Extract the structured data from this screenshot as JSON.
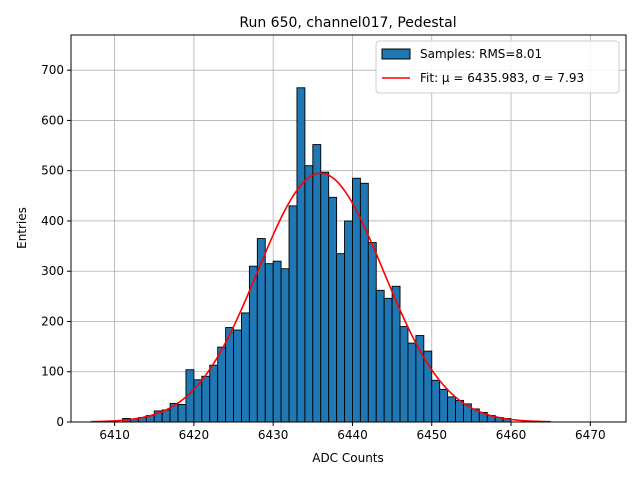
{
  "chart_data": {
    "type": "bar",
    "title": "Run 650, channel017, Pedestal",
    "xlabel": "ADC Counts",
    "ylabel": "Entries",
    "xlim": [
      6404.5,
      6474.5
    ],
    "ylim": [
      0,
      770
    ],
    "xticks": [
      6410,
      6420,
      6430,
      6440,
      6450,
      6460,
      6470
    ],
    "yticks": [
      0,
      100,
      200,
      300,
      400,
      500,
      600,
      700
    ],
    "grid": true,
    "legend_position": "top-right",
    "histogram": {
      "name": "Samples: RMS=8.01",
      "color": "#1f77b4",
      "bin_width": 1,
      "bin_starts": [
        6411,
        6412,
        6413,
        6414,
        6415,
        6416,
        6417,
        6418,
        6419,
        6420,
        6421,
        6422,
        6423,
        6424,
        6425,
        6426,
        6427,
        6428,
        6429,
        6430,
        6431,
        6432,
        6433,
        6434,
        6435,
        6436,
        6437,
        6438,
        6439,
        6440,
        6441,
        6442,
        6443,
        6444,
        6445,
        6446,
        6447,
        6448,
        6449,
        6450,
        6451,
        6452,
        6453,
        6454,
        6455,
        6456,
        6457,
        6458,
        6459
      ],
      "counts": [
        7,
        6,
        9,
        13,
        22,
        24,
        37,
        35,
        104,
        84,
        91,
        113,
        149,
        188,
        183,
        217,
        310,
        365,
        315,
        320,
        305,
        430,
        665,
        510,
        552,
        497,
        447,
        335,
        400,
        485,
        475,
        357,
        262,
        246,
        270,
        190,
        157,
        172,
        141,
        83,
        65,
        50,
        43,
        36,
        26,
        19,
        13,
        9,
        7
      ]
    },
    "fit": {
      "name": "Fit: μ = 6435.983, σ = 7.93",
      "color": "#ff0000",
      "mu": 6435.983,
      "sigma": 7.93,
      "amplitude": 495,
      "x_range": [
        6407,
        6465
      ]
    }
  }
}
